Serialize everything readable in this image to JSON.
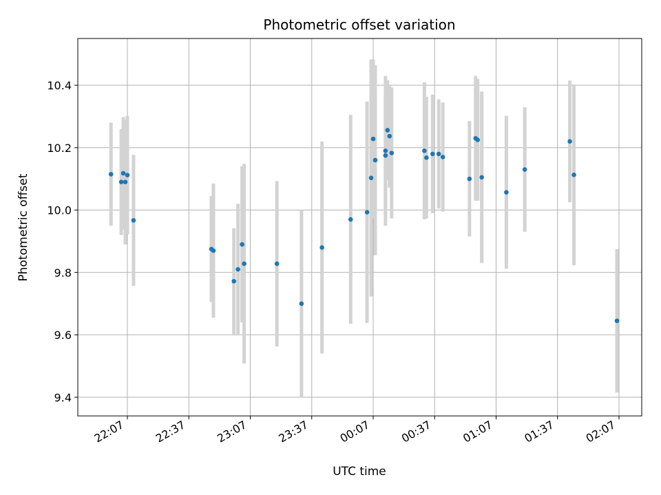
{
  "chart_data": {
    "type": "scatter",
    "title": "Photometric offset variation",
    "xlabel": "UTC time",
    "ylabel": "Photometric offset",
    "x_tick_labels": [
      "22:07",
      "22:37",
      "23:07",
      "23:37",
      "00:07",
      "00:37",
      "01:07",
      "01:37",
      "02:07"
    ],
    "y_tick_labels": [
      "9.4",
      "9.6",
      "9.8",
      "10.0",
      "10.2",
      "10.4"
    ],
    "y_ticks": [
      9.4,
      9.6,
      9.8,
      10.0,
      10.2,
      10.4
    ],
    "ylim": [
      9.34,
      10.55
    ],
    "grid": true,
    "marker_color": "#1f77b4",
    "errorbar_color": "#d3d3d3",
    "points": [
      {
        "x": "21:59",
        "y": 10.115,
        "err": 0.165
      },
      {
        "x": "22:04",
        "y": 10.09,
        "err": 0.17
      },
      {
        "x": "22:05",
        "y": 10.118,
        "err": 0.18
      },
      {
        "x": "22:06",
        "y": 10.09,
        "err": 0.2
      },
      {
        "x": "22:07",
        "y": 10.112,
        "err": 0.19
      },
      {
        "x": "22:10",
        "y": 9.967,
        "err": 0.21
      },
      {
        "x": "22:48",
        "y": 9.875,
        "err": 0.17
      },
      {
        "x": "22:49",
        "y": 9.87,
        "err": 0.215
      },
      {
        "x": "22:59",
        "y": 9.772,
        "err": 0.17
      },
      {
        "x": "23:01",
        "y": 9.81,
        "err": 0.21
      },
      {
        "x": "23:03",
        "y": 9.89,
        "err": 0.25
      },
      {
        "x": "23:04",
        "y": 9.828,
        "err": 0.32
      },
      {
        "x": "23:20",
        "y": 9.828,
        "err": 0.265
      },
      {
        "x": "23:32",
        "y": 9.7,
        "err": 0.3
      },
      {
        "x": "23:42",
        "y": 9.88,
        "err": 0.34
      },
      {
        "x": "23:56",
        "y": 9.97,
        "err": 0.335
      },
      {
        "x": "00:04",
        "y": 9.993,
        "err": 0.355
      },
      {
        "x": "00:06",
        "y": 10.103,
        "err": 0.38
      },
      {
        "x": "00:07",
        "y": 10.228,
        "err": 0.255
      },
      {
        "x": "00:08",
        "y": 10.16,
        "err": 0.305
      },
      {
        "x": "00:13",
        "y": 10.175,
        "err": 0.19
      },
      {
        "x": "00:13",
        "y": 10.19,
        "err": 0.24
      },
      {
        "x": "00:14",
        "y": 10.256,
        "err": 0.16
      },
      {
        "x": "00:15",
        "y": 10.237,
        "err": 0.165
      },
      {
        "x": "00:16",
        "y": 10.183,
        "err": 0.21
      },
      {
        "x": "00:32",
        "y": 10.19,
        "err": 0.22
      },
      {
        "x": "00:33",
        "y": 10.168,
        "err": 0.195
      },
      {
        "x": "00:36",
        "y": 10.18,
        "err": 0.19
      },
      {
        "x": "00:39",
        "y": 10.18,
        "err": 0.175
      },
      {
        "x": "00:41",
        "y": 10.17,
        "err": 0.175
      },
      {
        "x": "00:54",
        "y": 10.1,
        "err": 0.185
      },
      {
        "x": "00:57",
        "y": 10.23,
        "err": 0.2
      },
      {
        "x": "00:58",
        "y": 10.225,
        "err": 0.195
      },
      {
        "x": "01:00",
        "y": 10.105,
        "err": 0.275
      },
      {
        "x": "01:12",
        "y": 10.057,
        "err": 0.245
      },
      {
        "x": "01:21",
        "y": 10.13,
        "err": 0.2
      },
      {
        "x": "01:43",
        "y": 10.22,
        "err": 0.195
      },
      {
        "x": "01:45",
        "y": 10.113,
        "err": 0.29
      },
      {
        "x": "02:06",
        "y": 9.645,
        "err": 0.23
      }
    ]
  }
}
